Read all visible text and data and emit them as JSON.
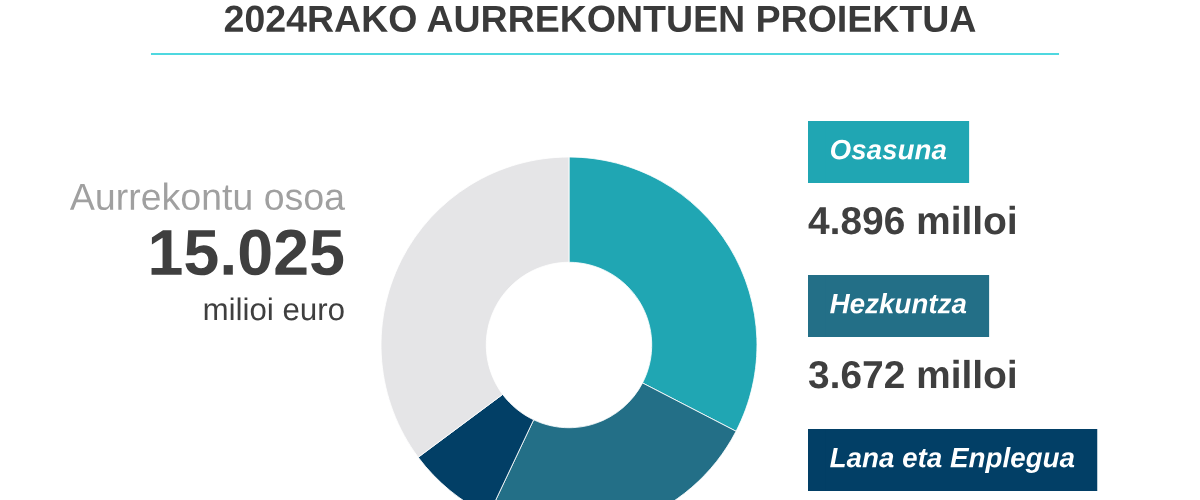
{
  "chart_data": {
    "type": "donut",
    "title": "2024RAKO AURREKONTUEN PROIEKTUA",
    "categories": [
      "Osasuna",
      "Hezkuntza",
      "Lana eta Enplegua",
      null
    ],
    "values": [
      4896,
      3672,
      1170,
      5287
    ],
    "colors": [
      "#20a6b3",
      "#236f87",
      "#023f66",
      "#e5e5e7"
    ],
    "value_labels": [
      "4.896 milloi",
      "3.672 milloi",
      null,
      null
    ],
    "legend": "right",
    "annotations": [
      "Aurrekontu osoa",
      "15.025",
      "milioi euro"
    ]
  }
}
